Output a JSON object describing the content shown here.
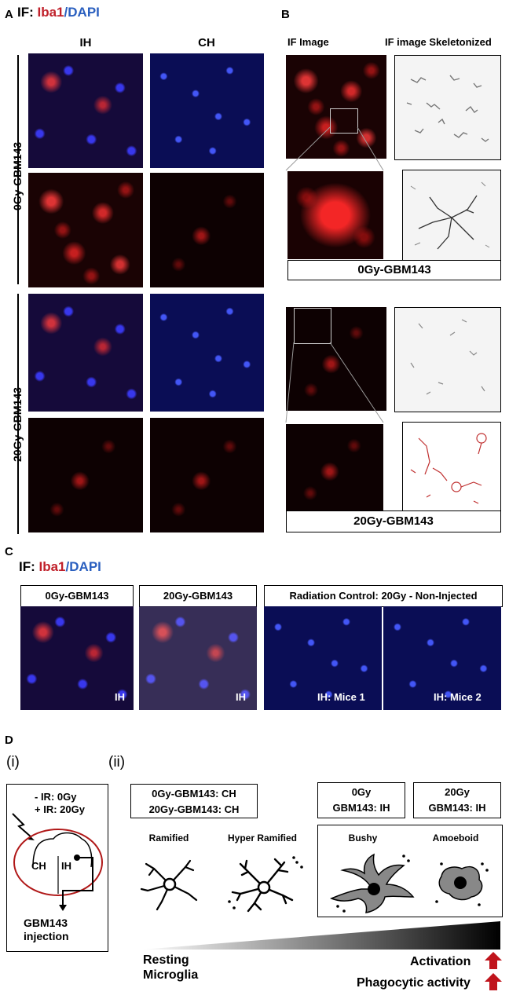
{
  "panel_a": {
    "label": "A",
    "title_prefix": "IF: ",
    "title_red": "Iba1",
    "title_sep": "/",
    "title_blue": "DAPI",
    "col_ih": "IH",
    "col_ch": "CH",
    "row_0gy": "0Gy-GBM143",
    "row_20gy": "20Gy-GBM143"
  },
  "panel_b": {
    "label": "B",
    "col_if": "IF Image",
    "col_skel": "IF image Skeletonized",
    "caption_0gy": "0Gy-GBM143",
    "caption_20gy": "20Gy-GBM143"
  },
  "panel_c": {
    "label": "C",
    "title_prefix": "IF: ",
    "title_red": "Iba1",
    "title_sep": "/",
    "title_blue": "DAPI",
    "box1": "0Gy-GBM143",
    "box2": "20Gy-GBM143",
    "box3": "Radiation Control: 20Gy - Non-Injected",
    "tag1": "IH",
    "tag2": "IH",
    "tag3": "IH: Mice 1",
    "tag4": "IH: Mice 2"
  },
  "panel_d": {
    "label": "D",
    "sub_i": "(i)",
    "sub_ii": "(ii)",
    "ir0": "- IR: 0Gy",
    "ir20": "+ IR: 20Gy",
    "ch": "CH",
    "ih": "IH",
    "inj1": "GBM143",
    "inj2": "injection",
    "ch_box_line1": "0Gy-GBM143: CH",
    "ch_box_line2": "20Gy-GBM143: CH",
    "ih0_line1": "0Gy",
    "ih0_line2": "GBM143: IH",
    "ih20_line1": "20Gy",
    "ih20_line2": "GBM143: IH",
    "ramified": "Ramified",
    "hyper": "Hyper Ramified",
    "bushy": "Bushy",
    "amoeboid": "Amoeboid",
    "resting1": "Resting",
    "resting2": "Microglia",
    "activation": "Activation",
    "phago": "Phagocytic activity"
  },
  "colors": {
    "iba1": "#c0202a",
    "dapi": "#2a5fbf",
    "arrow": "#c0141c",
    "ellipse": "#b01818"
  }
}
